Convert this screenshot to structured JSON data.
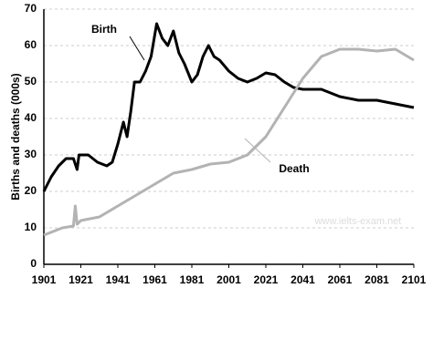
{
  "chart_data": {
    "type": "line",
    "y_label": "Births and deaths (000s)",
    "watermark": "www.ielts-exam.net",
    "xlim": [
      1901,
      2101
    ],
    "xticks": [
      1901,
      1921,
      1941,
      1961,
      1981,
      2001,
      2021,
      2041,
      2061,
      2081,
      2101
    ],
    "ylim": [
      0,
      70
    ],
    "yticks": [
      0,
      10,
      20,
      30,
      40,
      50,
      60,
      70
    ],
    "grid": true,
    "series": [
      {
        "name": "Birth",
        "color": "#000000",
        "x": [
          1901,
          1905,
          1909,
          1913,
          1917,
          1919,
          1920,
          1925,
          1930,
          1935,
          1938,
          1941,
          1944,
          1946,
          1948,
          1950,
          1953,
          1956,
          1959,
          1962,
          1965,
          1968,
          1971,
          1974,
          1977,
          1981,
          1984,
          1987,
          1990,
          1993,
          1996,
          2001,
          2006,
          2011,
          2016,
          2021,
          2026,
          2031,
          2036,
          2041,
          2051,
          2061,
          2071,
          2081,
          2091,
          2101
        ],
        "values": [
          20,
          24,
          27,
          29,
          29,
          26,
          30,
          30,
          28,
          27,
          28,
          33,
          39,
          35,
          42,
          50,
          50,
          53,
          57,
          66,
          62,
          60,
          64,
          58,
          55,
          50,
          52,
          57,
          60,
          57,
          56,
          53,
          51,
          50,
          51,
          52.5,
          52,
          50,
          48.5,
          48,
          48,
          46,
          45,
          45,
          44,
          43
        ]
      },
      {
        "name": "Death",
        "color": "#b3b3b3",
        "x": [
          1901,
          1911,
          1917,
          1918,
          1919,
          1921,
          1931,
          1941,
          1951,
          1961,
          1971,
          1981,
          1991,
          2001,
          2011,
          2021,
          2031,
          2041,
          2051,
          2061,
          2071,
          2081,
          2091,
          2101
        ],
        "values": [
          8,
          10,
          10.5,
          16,
          11,
          12,
          13,
          16,
          19,
          22,
          25,
          26,
          27.5,
          28,
          30,
          35,
          43,
          51,
          57,
          59,
          59,
          58.5,
          59,
          56
        ]
      }
    ]
  }
}
